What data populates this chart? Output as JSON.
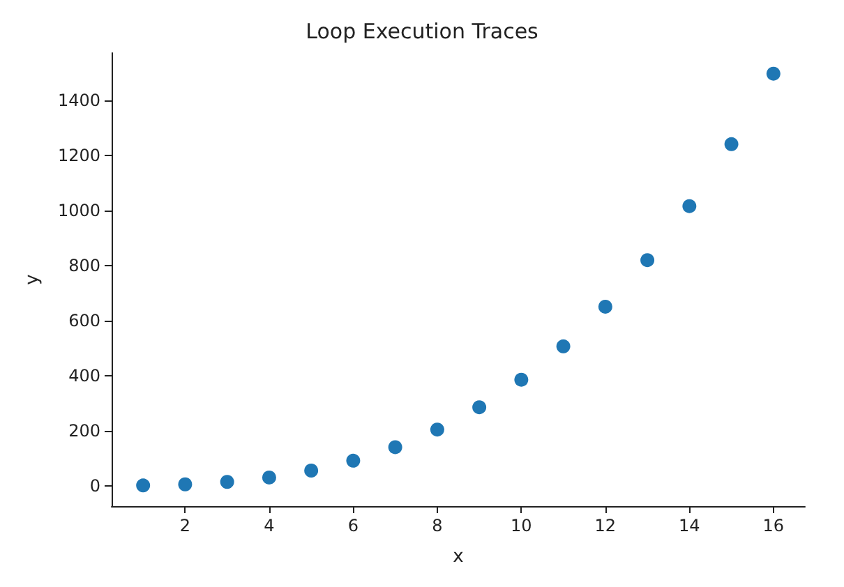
{
  "chart_data": {
    "type": "scatter",
    "title": "Loop Execution Traces",
    "xlabel": "x",
    "ylabel": "y",
    "x": [
      1,
      2,
      3,
      4,
      5,
      6,
      7,
      8,
      9,
      10,
      11,
      12,
      13,
      14,
      15,
      16
    ],
    "series": [
      {
        "color": "#1f77b4",
        "values": [
          1,
          5,
          14,
          30,
          55,
          91,
          140,
          204,
          285,
          385,
          506,
          650,
          819,
          1015,
          1240,
          1496
        ]
      }
    ],
    "xlim": [
      0.25,
      16.75
    ],
    "xticks": [
      2,
      4,
      6,
      8,
      10,
      12,
      14,
      16
    ],
    "ylim": [
      -74,
      1571
    ],
    "yticks": [
      0,
      200,
      400,
      600,
      800,
      1000,
      1200,
      1400
    ],
    "grid": false,
    "marker": "circle"
  }
}
